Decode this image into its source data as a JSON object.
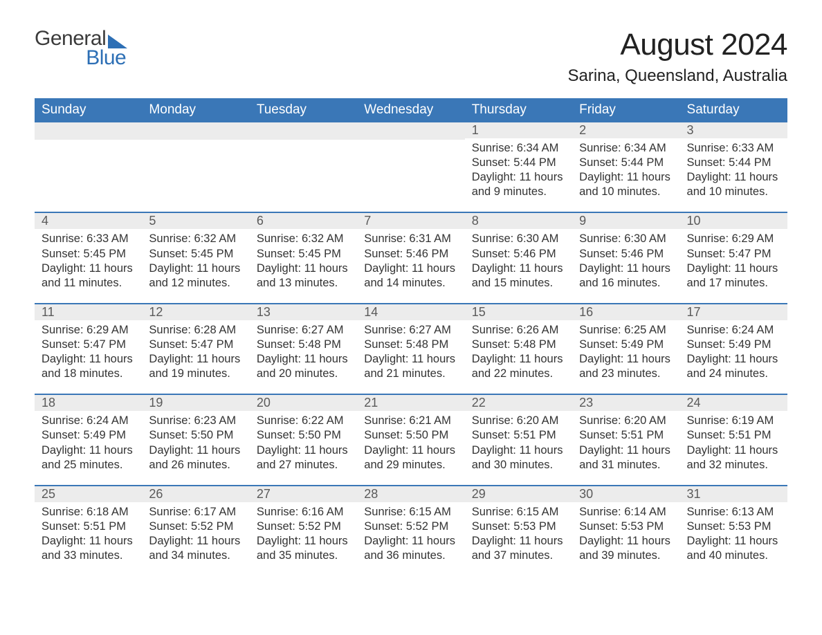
{
  "colors": {
    "header_blue": "#3a77b7",
    "band_grey": "#ececec",
    "text": "#333333",
    "logo_blue": "#2d6fb5",
    "background": "#ffffff"
  },
  "typography": {
    "title_fontsize_pt": 33,
    "location_fontsize_pt": 18,
    "weekday_fontsize_pt": 14,
    "daynum_fontsize_pt": 13,
    "body_fontsize_pt": 12
  },
  "logo": {
    "line1": "General",
    "line2": "Blue"
  },
  "title": "August 2024",
  "location": "Sarina, Queensland, Australia",
  "weekdays": [
    "Sunday",
    "Monday",
    "Tuesday",
    "Wednesday",
    "Thursday",
    "Friday",
    "Saturday"
  ],
  "start_day_index": 4,
  "days": [
    {
      "n": 1,
      "sunrise": "6:34 AM",
      "sunset": "5:44 PM",
      "daylight": "11 hours and 9 minutes."
    },
    {
      "n": 2,
      "sunrise": "6:34 AM",
      "sunset": "5:44 PM",
      "daylight": "11 hours and 10 minutes."
    },
    {
      "n": 3,
      "sunrise": "6:33 AM",
      "sunset": "5:44 PM",
      "daylight": "11 hours and 10 minutes."
    },
    {
      "n": 4,
      "sunrise": "6:33 AM",
      "sunset": "5:45 PM",
      "daylight": "11 hours and 11 minutes."
    },
    {
      "n": 5,
      "sunrise": "6:32 AM",
      "sunset": "5:45 PM",
      "daylight": "11 hours and 12 minutes."
    },
    {
      "n": 6,
      "sunrise": "6:32 AM",
      "sunset": "5:45 PM",
      "daylight": "11 hours and 13 minutes."
    },
    {
      "n": 7,
      "sunrise": "6:31 AM",
      "sunset": "5:46 PM",
      "daylight": "11 hours and 14 minutes."
    },
    {
      "n": 8,
      "sunrise": "6:30 AM",
      "sunset": "5:46 PM",
      "daylight": "11 hours and 15 minutes."
    },
    {
      "n": 9,
      "sunrise": "6:30 AM",
      "sunset": "5:46 PM",
      "daylight": "11 hours and 16 minutes."
    },
    {
      "n": 10,
      "sunrise": "6:29 AM",
      "sunset": "5:47 PM",
      "daylight": "11 hours and 17 minutes."
    },
    {
      "n": 11,
      "sunrise": "6:29 AM",
      "sunset": "5:47 PM",
      "daylight": "11 hours and 18 minutes."
    },
    {
      "n": 12,
      "sunrise": "6:28 AM",
      "sunset": "5:47 PM",
      "daylight": "11 hours and 19 minutes."
    },
    {
      "n": 13,
      "sunrise": "6:27 AM",
      "sunset": "5:48 PM",
      "daylight": "11 hours and 20 minutes."
    },
    {
      "n": 14,
      "sunrise": "6:27 AM",
      "sunset": "5:48 PM",
      "daylight": "11 hours and 21 minutes."
    },
    {
      "n": 15,
      "sunrise": "6:26 AM",
      "sunset": "5:48 PM",
      "daylight": "11 hours and 22 minutes."
    },
    {
      "n": 16,
      "sunrise": "6:25 AM",
      "sunset": "5:49 PM",
      "daylight": "11 hours and 23 minutes."
    },
    {
      "n": 17,
      "sunrise": "6:24 AM",
      "sunset": "5:49 PM",
      "daylight": "11 hours and 24 minutes."
    },
    {
      "n": 18,
      "sunrise": "6:24 AM",
      "sunset": "5:49 PM",
      "daylight": "11 hours and 25 minutes."
    },
    {
      "n": 19,
      "sunrise": "6:23 AM",
      "sunset": "5:50 PM",
      "daylight": "11 hours and 26 minutes."
    },
    {
      "n": 20,
      "sunrise": "6:22 AM",
      "sunset": "5:50 PM",
      "daylight": "11 hours and 27 minutes."
    },
    {
      "n": 21,
      "sunrise": "6:21 AM",
      "sunset": "5:50 PM",
      "daylight": "11 hours and 29 minutes."
    },
    {
      "n": 22,
      "sunrise": "6:20 AM",
      "sunset": "5:51 PM",
      "daylight": "11 hours and 30 minutes."
    },
    {
      "n": 23,
      "sunrise": "6:20 AM",
      "sunset": "5:51 PM",
      "daylight": "11 hours and 31 minutes."
    },
    {
      "n": 24,
      "sunrise": "6:19 AM",
      "sunset": "5:51 PM",
      "daylight": "11 hours and 32 minutes."
    },
    {
      "n": 25,
      "sunrise": "6:18 AM",
      "sunset": "5:51 PM",
      "daylight": "11 hours and 33 minutes."
    },
    {
      "n": 26,
      "sunrise": "6:17 AM",
      "sunset": "5:52 PM",
      "daylight": "11 hours and 34 minutes."
    },
    {
      "n": 27,
      "sunrise": "6:16 AM",
      "sunset": "5:52 PM",
      "daylight": "11 hours and 35 minutes."
    },
    {
      "n": 28,
      "sunrise": "6:15 AM",
      "sunset": "5:52 PM",
      "daylight": "11 hours and 36 minutes."
    },
    {
      "n": 29,
      "sunrise": "6:15 AM",
      "sunset": "5:53 PM",
      "daylight": "11 hours and 37 minutes."
    },
    {
      "n": 30,
      "sunrise": "6:14 AM",
      "sunset": "5:53 PM",
      "daylight": "11 hours and 39 minutes."
    },
    {
      "n": 31,
      "sunrise": "6:13 AM",
      "sunset": "5:53 PM",
      "daylight": "11 hours and 40 minutes."
    }
  ],
  "labels": {
    "sunrise": "Sunrise:",
    "sunset": "Sunset:",
    "daylight": "Daylight:"
  }
}
